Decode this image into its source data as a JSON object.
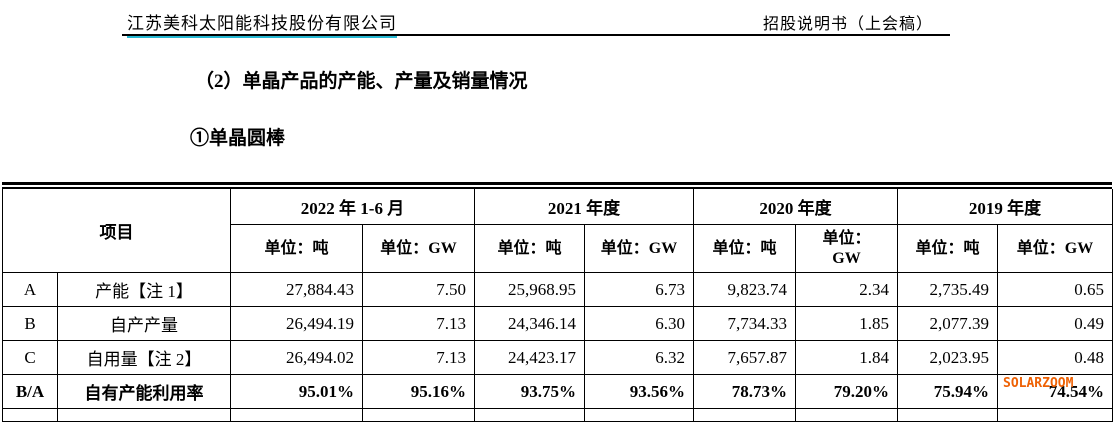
{
  "page_header": {
    "company": "江苏美科太阳能科技股份有限公司",
    "doc_title": "招股说明书（上会稿）"
  },
  "headings": {
    "section": "（2）单晶产品的产能、产量及销量情况",
    "subsection": "①单晶圆棒"
  },
  "watermark": {
    "text": "SOLARZOOM",
    "color": "#ee6104"
  },
  "colors": {
    "company_underline": "#25b8d2",
    "text": "#000000"
  },
  "table": {
    "item_header": "项目",
    "column_groups": [
      {
        "label": "2022 年 1-6 月",
        "units": [
          "单位：吨",
          "单位：GW"
        ]
      },
      {
        "label": "2021 年度",
        "units": [
          "单位：吨",
          "单位：GW"
        ]
      },
      {
        "label": "2020 年度",
        "units": [
          "单位：吨",
          "单位：\nGW"
        ]
      },
      {
        "label": "2019 年度",
        "units": [
          "单位：吨",
          "单位：GW"
        ]
      }
    ],
    "rows": [
      {
        "code": "A",
        "label": "产能【注 1】",
        "bold": false,
        "values": [
          "27,884.43",
          "7.50",
          "25,968.95",
          "6.73",
          "9,823.74",
          "2.34",
          "2,735.49",
          "0.65"
        ]
      },
      {
        "code": "B",
        "label": "自产产量",
        "bold": false,
        "values": [
          "26,494.19",
          "7.13",
          "24,346.14",
          "6.30",
          "7,734.33",
          "1.85",
          "2,077.39",
          "0.49"
        ]
      },
      {
        "code": "C",
        "label": "自用量【注 2】",
        "bold": false,
        "values": [
          "26,494.02",
          "7.13",
          "24,423.17",
          "6.32",
          "7,657.87",
          "1.84",
          "2,023.95",
          "0.48"
        ]
      },
      {
        "code": "B/A",
        "label": "自有产能利用率",
        "bold": true,
        "values": [
          "95.01%",
          "95.16%",
          "93.75%",
          "93.56%",
          "78.73%",
          "79.20%",
          "75.94%",
          "74.54%"
        ]
      }
    ]
  }
}
